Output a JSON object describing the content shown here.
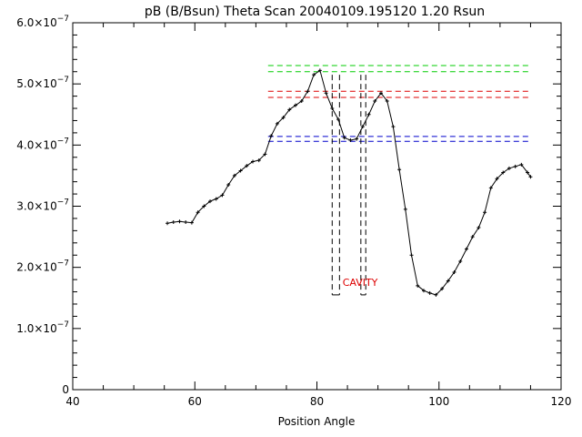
{
  "chart_data": {
    "type": "line",
    "title": "pB (B/Bsun) Theta Scan 20040109.195120 1.20 Rsun",
    "xlabel": "Position Angle",
    "ylabel": "",
    "xlim": [
      40,
      120
    ],
    "ylim": [
      0,
      6e-07
    ],
    "x_ticks": [
      {
        "value": 40,
        "label": "40"
      },
      {
        "value": 60,
        "label": "60"
      },
      {
        "value": 80,
        "label": "80"
      },
      {
        "value": 100,
        "label": "100"
      },
      {
        "value": 120,
        "label": "120"
      }
    ],
    "y_ticks": [
      {
        "value": 0,
        "mant": "0",
        "exp": ""
      },
      {
        "value": 1e-07,
        "mant": "1.0×10",
        "exp": "−7"
      },
      {
        "value": 2e-07,
        "mant": "2.0×10",
        "exp": "−7"
      },
      {
        "value": 3e-07,
        "mant": "3.0×10",
        "exp": "−7"
      },
      {
        "value": 4e-07,
        "mant": "4.0×10",
        "exp": "−7"
      },
      {
        "value": 5e-07,
        "mant": "5.0×10",
        "exp": "−7"
      },
      {
        "value": 6e-07,
        "mant": "6.0×10",
        "exp": "−7"
      }
    ],
    "x_minor_step": 5,
    "y_minor_step": 2e-08,
    "grid": false,
    "series": [
      {
        "color": "#000000",
        "marker": "+",
        "x": [
          55.5,
          56.5,
          57.5,
          58.5,
          59.5,
          60.5,
          61.5,
          62.5,
          63.5,
          64.5,
          65.5,
          66.5,
          67.5,
          68.5,
          69.5,
          70.5,
          71.5,
          72.5,
          73.5,
          74.5,
          75.5,
          76.5,
          77.5,
          78.5,
          79.5,
          80.5,
          81.5,
          82.5,
          83.5,
          84.5,
          85.5,
          86.5,
          87.5,
          88.5,
          89.5,
          90.5,
          91.5,
          92.5,
          93.5,
          94.5,
          95.5,
          96.5,
          97.5,
          98.5,
          99.5,
          100.5,
          101.5,
          102.5,
          103.5,
          104.5,
          105.5,
          106.5,
          107.5,
          108.5,
          109.5,
          110.5,
          111.5,
          112.5,
          113.5,
          114.5,
          115.0
        ],
        "y": [
          2.72e-07,
          2.74e-07,
          2.75e-07,
          2.74e-07,
          2.73e-07,
          2.9e-07,
          3e-07,
          3.08e-07,
          3.12e-07,
          3.18e-07,
          3.35e-07,
          3.5e-07,
          3.58e-07,
          3.66e-07,
          3.73e-07,
          3.75e-07,
          3.85e-07,
          4.15e-07,
          4.35e-07,
          4.45e-07,
          4.58e-07,
          4.65e-07,
          4.72e-07,
          4.88e-07,
          5.15e-07,
          5.22e-07,
          4.85e-07,
          4.6e-07,
          4.42e-07,
          4.12e-07,
          4.08e-07,
          4.1e-07,
          4.3e-07,
          4.5e-07,
          4.72e-07,
          4.85e-07,
          4.72e-07,
          4.3e-07,
          3.6e-07,
          2.95e-07,
          2.2e-07,
          1.7e-07,
          1.62e-07,
          1.58e-07,
          1.55e-07,
          1.65e-07,
          1.78e-07,
          1.92e-07,
          2.1e-07,
          2.3e-07,
          2.5e-07,
          2.65e-07,
          2.9e-07,
          3.3e-07,
          3.45e-07,
          3.55e-07,
          3.62e-07,
          3.65e-07,
          3.68e-07,
          3.55e-07,
          3.48e-07
        ]
      }
    ],
    "reference_lines": [
      {
        "y": 5.3e-07,
        "color": "#00cc00",
        "dash": true
      },
      {
        "y": 5.2e-07,
        "color": "#00cc00",
        "dash": true
      },
      {
        "y": 4.88e-07,
        "color": "#dd0000",
        "dash": true
      },
      {
        "y": 4.78e-07,
        "color": "#dd0000",
        "dash": true
      },
      {
        "y": 4.14e-07,
        "color": "#0000cc",
        "dash": true
      },
      {
        "y": 4.06e-07,
        "color": "#0000cc",
        "dash": true
      }
    ],
    "x_range_from": 72,
    "x_range_to": 115,
    "vertical_markers": [
      {
        "x": 82.5,
        "y_top": 5.15e-07,
        "y_bottom": 1.55e-07
      },
      {
        "x": 83.7,
        "y_top": 5.15e-07,
        "y_bottom": 1.55e-07
      },
      {
        "x": 87.2,
        "y_top": 5.15e-07,
        "y_bottom": 1.55e-07
      },
      {
        "x": 88.0,
        "y_top": 5.15e-07,
        "y_bottom": 1.55e-07
      }
    ],
    "annotations": [
      {
        "text": "CAVITY",
        "x": 84.2,
        "y": 1.7e-07,
        "color": "#dd0000"
      }
    ]
  }
}
